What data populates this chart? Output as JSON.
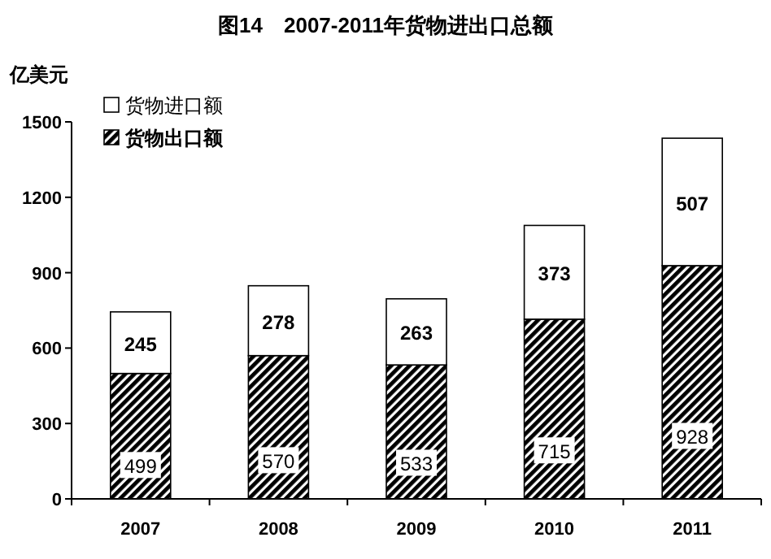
{
  "chart_data": {
    "type": "bar",
    "title": "图14　2007-2011年货物进出口总额",
    "ylabel": "亿美元",
    "categories": [
      "2007",
      "2008",
      "2009",
      "2010",
      "2011"
    ],
    "stacked": true,
    "data_labels": true,
    "legend": "top left",
    "grid": false,
    "ylim": [
      0,
      1500
    ],
    "yticks": [
      0,
      300,
      600,
      900,
      1200,
      1500
    ],
    "series": [
      {
        "name": "货物出口额",
        "color": "#000000",
        "values": [
          499,
          570,
          533,
          715,
          928
        ]
      },
      {
        "name": "货物进口额",
        "color": "#ffffff",
        "values": [
          245,
          278,
          263,
          373,
          507
        ]
      }
    ]
  }
}
